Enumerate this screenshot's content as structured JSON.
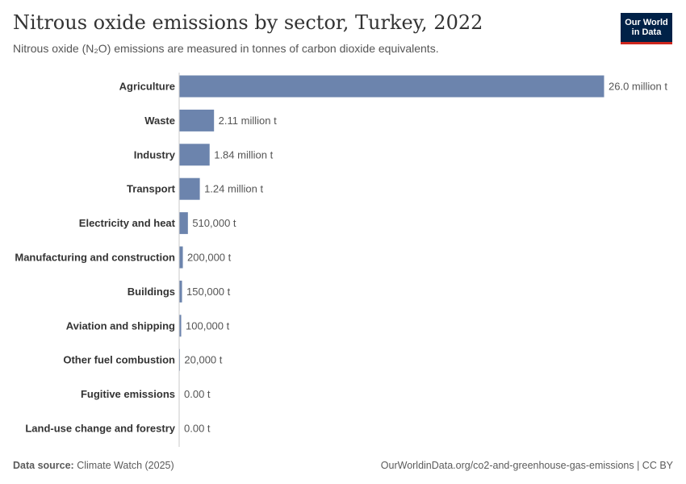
{
  "header": {
    "title": "Nitrous oxide emissions by sector, Turkey, 2022",
    "subtitle": "Nitrous oxide (N₂O) emissions are measured in tonnes of carbon dioxide equivalents."
  },
  "logo": {
    "line1": "Our World",
    "line2": "in Data"
  },
  "footer": {
    "source_label": "Data source:",
    "source_value": "Climate Watch (2025)",
    "url_license": "OurWorldinData.org/co2-and-greenhouse-gas-emissions | CC BY"
  },
  "colors": {
    "bar": "#6c84ad",
    "axis": "#c8c8c8",
    "label": "#333333",
    "value_label": "#555555"
  },
  "chart_data": {
    "type": "bar",
    "orientation": "horizontal",
    "categories": [
      "Agriculture",
      "Waste",
      "Industry",
      "Transport",
      "Electricity and heat",
      "Manufacturing and construction",
      "Buildings",
      "Aviation and shipping",
      "Other fuel combustion",
      "Fugitive emissions",
      "Land-use change and forestry"
    ],
    "values": [
      26000000,
      2110000,
      1840000,
      1240000,
      510000,
      200000,
      150000,
      100000,
      20000,
      0,
      0
    ],
    "value_labels": [
      "26.0 million t",
      "2.11 million t",
      "1.84 million t",
      "1.24 million t",
      "510,000 t",
      "200,000 t",
      "150,000 t",
      "100,000 t",
      "20,000 t",
      "0.00 t",
      "0.00 t"
    ],
    "unit": "t",
    "xlim": [
      0,
      26000000
    ]
  }
}
